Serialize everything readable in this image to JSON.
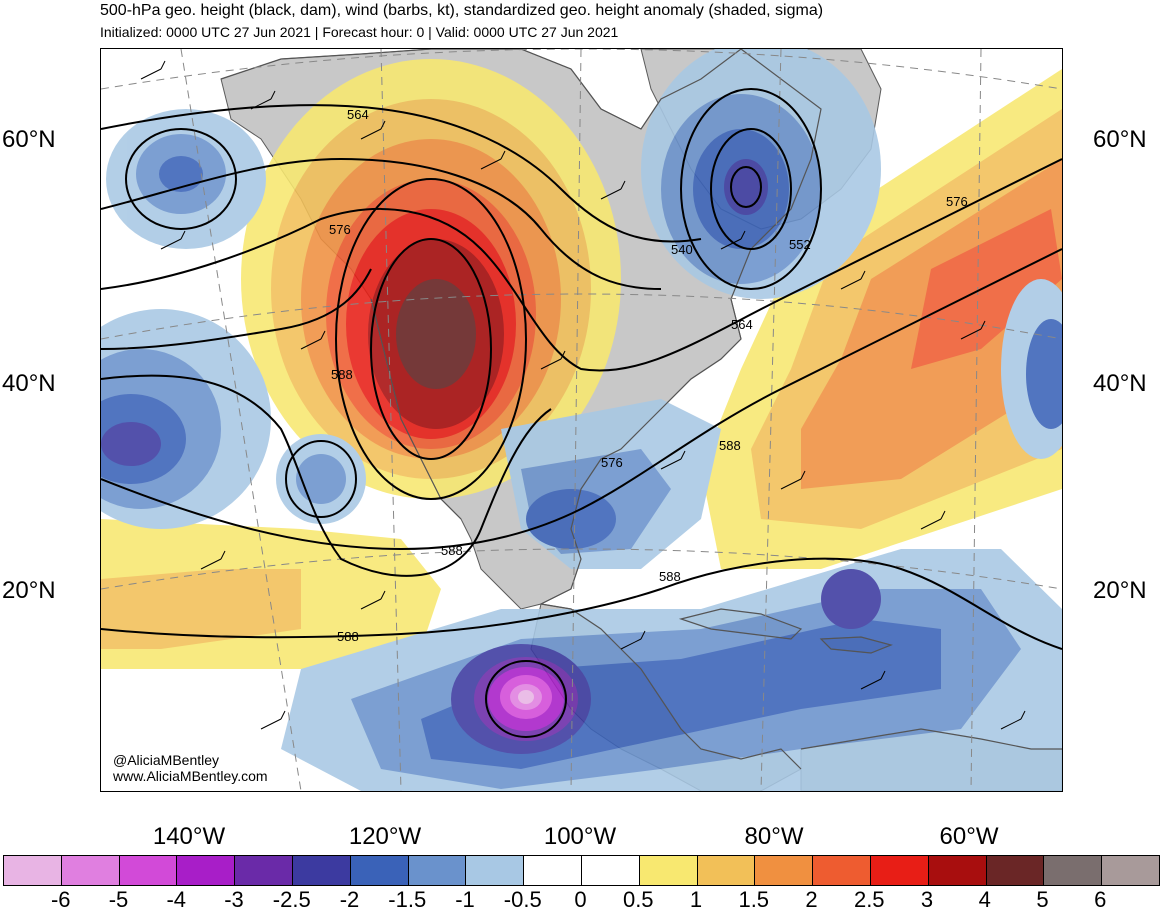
{
  "header": {
    "title": "500-hPa geo. height (black, dam), wind (barbs, kt), standardized geo. height anomaly (shaded, sigma)",
    "subtitle": "Initialized: 0000 UTC 27 Jun 2021 | Forecast hour: 0 | Valid: 0000 UTC 27 Jun 2021"
  },
  "map": {
    "lat_labels_left": [
      "60°N",
      "40°N",
      "20°N"
    ],
    "lat_labels_right": [
      "60°N",
      "40°N",
      "20°N"
    ],
    "lon_labels": [
      "140°W",
      "120°W",
      "100°W",
      "80°W",
      "60°W"
    ],
    "contour_labels": [
      "564",
      "576",
      "588",
      "540",
      "552",
      "564",
      "576",
      "576",
      "588",
      "588",
      "588",
      "588"
    ],
    "credit": {
      "handle": "@AliciaMBentley",
      "website": "www.AliciaMBentley.com"
    },
    "colors": {
      "land": "#c8c8c8",
      "ocean": "#ffffff",
      "coastline": "#555555",
      "contour": "#000000"
    }
  },
  "colorbar": {
    "labels": [
      "-6",
      "-5",
      "-4",
      "-3",
      "-2.5",
      "-2",
      "-1.5",
      "-1",
      "-0.5",
      "0",
      "0.5",
      "1",
      "1.5",
      "2",
      "2.5",
      "3",
      "4",
      "5",
      "6"
    ],
    "colors": [
      "#e8b4e4",
      "#e07fe0",
      "#d24ad8",
      "#a81ec8",
      "#6a2aa8",
      "#3c3aa0",
      "#3a62b8",
      "#6a92cc",
      "#a8c8e4",
      "#ffffff",
      "#ffffff",
      "#f8e870",
      "#f2c058",
      "#f09040",
      "#ee5c30",
      "#e81e16",
      "#a80e0e",
      "#6a2626",
      "#7a6e6e",
      "#a89a9a"
    ]
  }
}
